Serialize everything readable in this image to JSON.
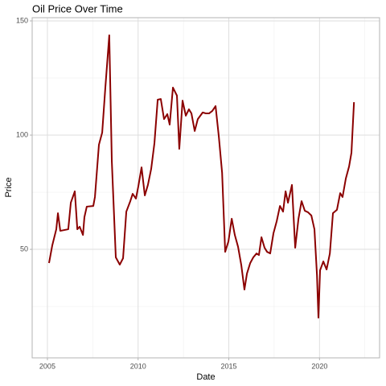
{
  "chart_data": {
    "type": "line",
    "title": "Oil Price Over Time",
    "x_label": "Date",
    "y_label": "Price",
    "color": "#8b0000",
    "grid": true,
    "x": [
      2005.09,
      2005.27,
      2005.49,
      2005.58,
      2005.71,
      2006.15,
      2006.29,
      2006.51,
      2006.65,
      2006.78,
      2006.96,
      2007.04,
      2007.17,
      2007.53,
      2007.62,
      2007.84,
      2008.02,
      2008.19,
      2008.41,
      2008.55,
      2008.77,
      2008.99,
      2009.17,
      2009.35,
      2009.57,
      2009.7,
      2009.88,
      2010.01,
      2010.19,
      2010.37,
      2010.54,
      2010.72,
      2010.9,
      2011.08,
      2011.25,
      2011.43,
      2011.61,
      2011.74,
      2011.92,
      2012.14,
      2012.27,
      2012.45,
      2012.63,
      2012.8,
      2012.94,
      2013.12,
      2013.29,
      2013.56,
      2013.74,
      2013.91,
      2014.09,
      2014.27,
      2014.45,
      2014.63,
      2014.8,
      2014.98,
      2015.16,
      2015.33,
      2015.51,
      2015.69,
      2015.86,
      2016.0,
      2016.18,
      2016.35,
      2016.53,
      2016.66,
      2016.8,
      2016.97,
      2017.11,
      2017.28,
      2017.46,
      2017.64,
      2017.82,
      2017.99,
      2018.13,
      2018.26,
      2018.48,
      2018.66,
      2018.84,
      2019.01,
      2019.19,
      2019.37,
      2019.55,
      2019.72,
      2019.86,
      2019.94,
      2020.03,
      2020.21,
      2020.39,
      2020.57,
      2020.74,
      2020.96,
      2021.14,
      2021.27,
      2021.45,
      2021.63,
      2021.76,
      2021.9
    ],
    "values": [
      44.0,
      51.8,
      58.8,
      65.8,
      58.1,
      58.8,
      70.4,
      75.4,
      58.8,
      59.9,
      56.3,
      64.1,
      68.7,
      69.0,
      72.9,
      95.8,
      101.1,
      120.4,
      143.7,
      88.7,
      46.5,
      43.3,
      46.1,
      66.5,
      71.1,
      74.3,
      72.2,
      77.5,
      85.9,
      73.6,
      78.2,
      85.2,
      96.5,
      115.5,
      115.8,
      107.0,
      109.2,
      104.6,
      120.8,
      117.3,
      94.0,
      115.1,
      108.5,
      111.3,
      109.5,
      101.8,
      107.0,
      109.9,
      109.5,
      109.5,
      110.6,
      112.7,
      99.3,
      83.5,
      48.9,
      53.5,
      63.4,
      56.3,
      51.1,
      43.0,
      32.4,
      39.4,
      44.0,
      46.5,
      48.2,
      47.5,
      55.3,
      50.7,
      48.9,
      48.2,
      57.0,
      62.3,
      69.0,
      66.5,
      75.4,
      70.4,
      78.2,
      50.7,
      63.4,
      71.1,
      66.9,
      66.2,
      64.8,
      58.8,
      38.7,
      20.1,
      40.8,
      44.7,
      41.2,
      48.2,
      65.8,
      67.3,
      74.6,
      72.9,
      81.0,
      86.3,
      92.3,
      114.4
    ],
    "xlim": [
      2004.16,
      2023.31
    ],
    "xticks": [
      2005,
      2010,
      2015,
      2020
    ],
    "ylim": [
      2.5,
      151.4
    ],
    "yticks": [
      50,
      100,
      150
    ]
  }
}
